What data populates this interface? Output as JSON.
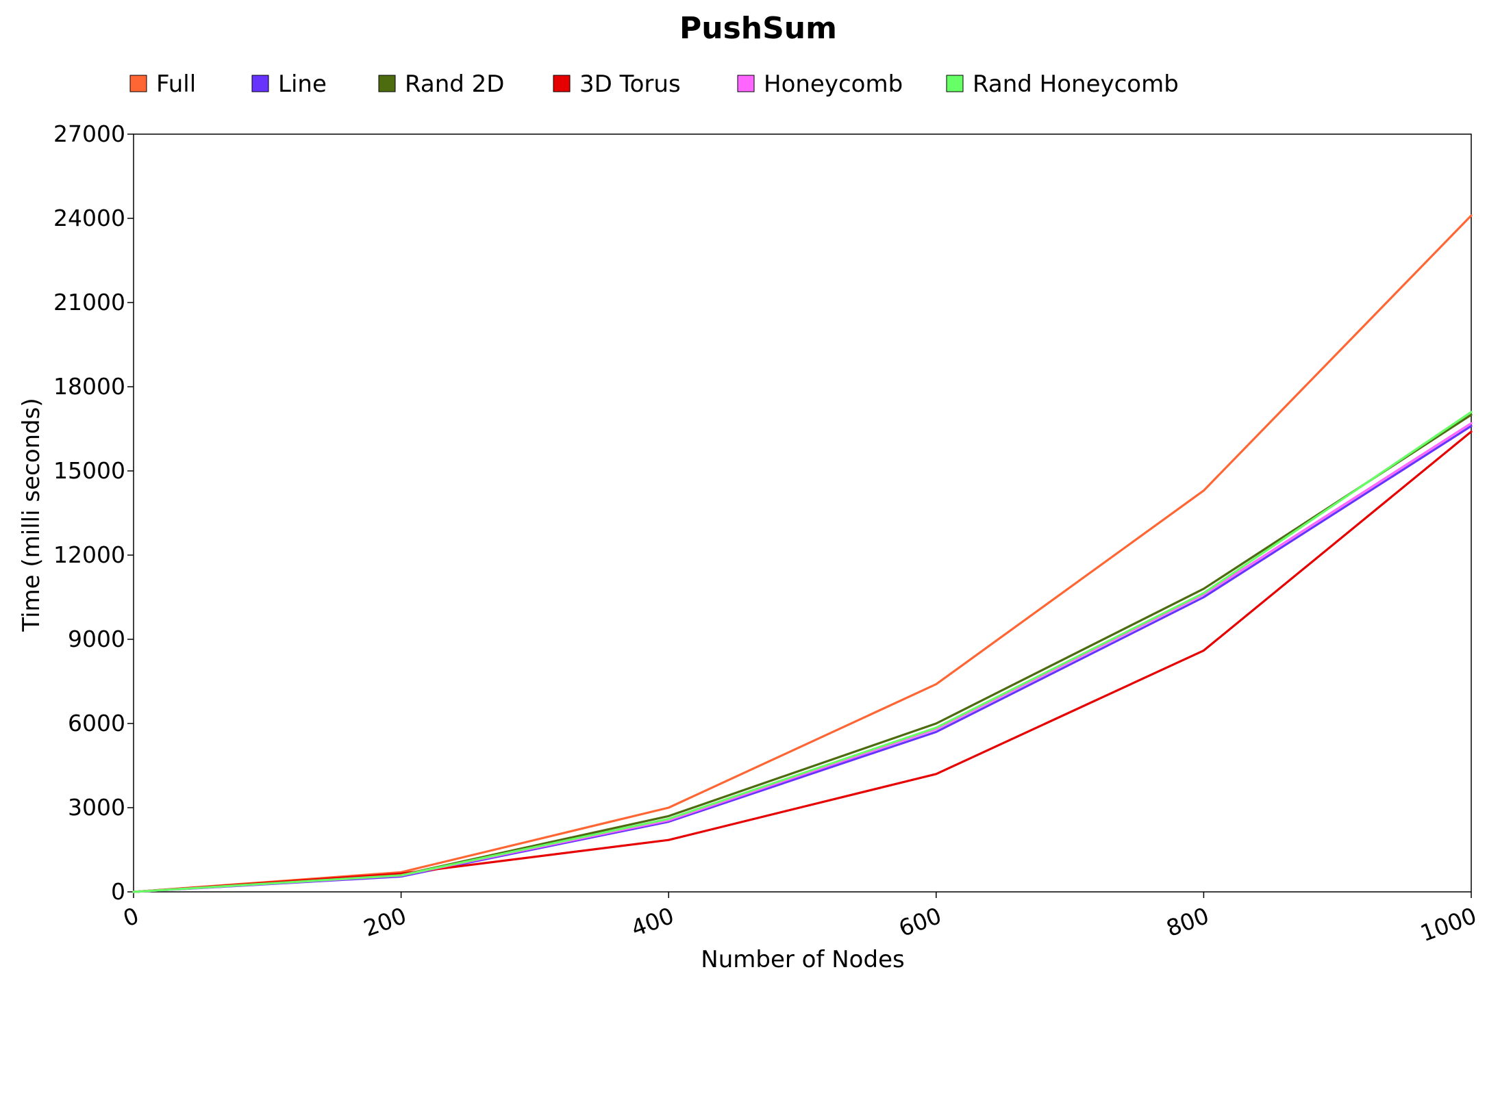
{
  "chart_data": {
    "type": "line",
    "title": "PushSum",
    "xlabel": "Number of Nodes",
    "ylabel": "Time (milli seconds)",
    "x": [
      0,
      200,
      400,
      600,
      800,
      1000
    ],
    "xlim": [
      0,
      1000
    ],
    "ylim": [
      0,
      27000
    ],
    "xticks": [
      0,
      200,
      400,
      600,
      800,
      1000
    ],
    "yticks": [
      0,
      3000,
      6000,
      9000,
      12000,
      15000,
      18000,
      21000,
      24000,
      27000
    ],
    "grid": false,
    "legend_position": "top",
    "series": [
      {
        "name": "Full",
        "color": "#ff6633",
        "values": [
          0,
          700,
          3000,
          7400,
          14300,
          24100
        ]
      },
      {
        "name": "Line",
        "color": "#6633ff",
        "values": [
          0,
          550,
          2500,
          5700,
          10500,
          16600
        ]
      },
      {
        "name": "Rand 2D",
        "color": "#4d6b0f",
        "values": [
          0,
          600,
          2700,
          6000,
          10800,
          17000
        ]
      },
      {
        "name": "3D Torus",
        "color": "#e60000",
        "values": [
          0,
          650,
          1850,
          4200,
          8600,
          16400
        ]
      },
      {
        "name": "Honeycomb",
        "color": "#ff66ff",
        "values": [
          0,
          580,
          2550,
          5800,
          10600,
          16700
        ]
      },
      {
        "name": "Rand Honeycomb",
        "color": "#66ff66",
        "values": [
          0,
          590,
          2600,
          5850,
          10650,
          17100
        ]
      }
    ]
  }
}
